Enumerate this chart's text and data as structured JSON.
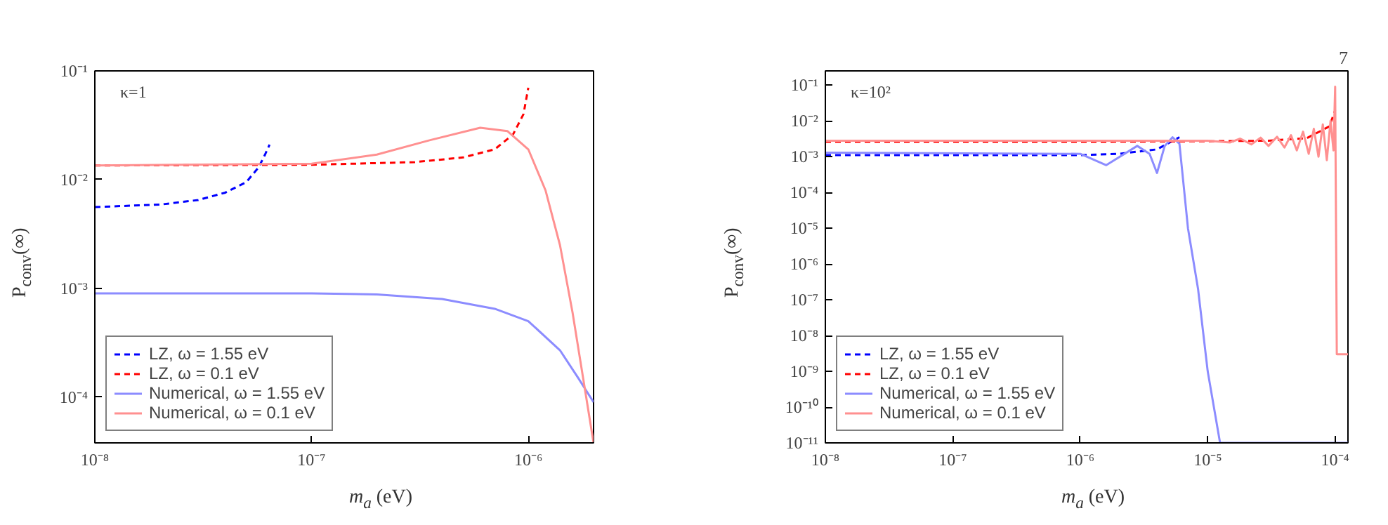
{
  "chart_data": [
    {
      "type": "line",
      "xlabel": "m$_{a}$ (eV)",
      "ylabel": "P$_{conv}$(∞)",
      "log": "xy",
      "grid": false,
      "legend": "bottom left",
      "annotations": [
        "κ=1"
      ],
      "xlim": [
        1e-08,
        2e-06
      ],
      "ylim": [
        3.8e-05,
        0.1
      ],
      "xticks": [
        {
          "value": 1e-08,
          "label": "10⁻⁸"
        },
        {
          "value": 1e-07,
          "label": "10⁻⁷"
        },
        {
          "value": 1e-06,
          "label": "10⁻⁶"
        }
      ],
      "yticks": [
        {
          "value": 0.0001,
          "label": "10⁻⁴"
        },
        {
          "value": 0.001,
          "label": "10⁻³"
        },
        {
          "value": 0.01,
          "label": "10⁻²"
        },
        {
          "value": 0.1,
          "label": "10⁻¹"
        }
      ],
      "series": [
        {
          "name": "LZ, ω = 1.55 eV",
          "color": "#0000ff",
          "line_style": "dashed",
          "x": [
            1e-08,
            2e-08,
            3e-08,
            4e-08,
            5e-08,
            5.7e-08,
            6.1e-08,
            6.4e-08
          ],
          "values": [
            0.0056,
            0.0059,
            0.0065,
            0.0076,
            0.0095,
            0.013,
            0.017,
            0.021
          ]
        },
        {
          "name": "LZ, ω = 0.1 eV",
          "color": "#ff0000",
          "line_style": "dashed",
          "x": [
            1e-08,
            1e-07,
            3e-07,
            5e-07,
            7e-07,
            8.5e-07,
            9.5e-07,
            1e-06
          ],
          "values": [
            0.0135,
            0.0137,
            0.0145,
            0.016,
            0.019,
            0.026,
            0.04,
            0.07
          ]
        },
        {
          "name": "Numerical, ω = 1.55 eV",
          "color": "#8c8cff",
          "line_style": "solid",
          "x": [
            1e-08,
            1e-07,
            2e-07,
            4e-07,
            7e-07,
            1e-06,
            1.4e-06,
            1.7e-06,
            2e-06
          ],
          "values": [
            0.0009,
            0.0009,
            0.00088,
            0.0008,
            0.00065,
            0.0005,
            0.00027,
            0.00015,
            9e-05
          ]
        },
        {
          "name": "Numerical, ω = 0.1 eV",
          "color": "#ff9090",
          "line_style": "solid",
          "x": [
            1e-08,
            1e-07,
            2e-07,
            3.5e-07,
            6e-07,
            8e-07,
            1e-06,
            1.2e-06,
            1.4e-06,
            1.6e-06,
            1.8e-06,
            2e-06
          ],
          "values": [
            0.0135,
            0.014,
            0.017,
            0.023,
            0.03,
            0.028,
            0.019,
            0.008,
            0.0025,
            0.0006,
            0.00014,
            3.8e-05
          ]
        }
      ]
    },
    {
      "type": "line",
      "xlabel": "m$_{a}$ (eV)",
      "ylabel": "P$_{conv}$(∞)",
      "log": "xy",
      "grid": false,
      "legend": "bottom left",
      "annotations": [
        "κ=10²",
        "7"
      ],
      "xlim": [
        1e-08,
        0.000126
      ],
      "ylim": [
        1e-11,
        0.25
      ],
      "xticks": [
        {
          "value": 1e-08,
          "label": "10⁻⁸"
        },
        {
          "value": 1e-07,
          "label": "10⁻⁷"
        },
        {
          "value": 1e-06,
          "label": "10⁻⁶"
        },
        {
          "value": 1e-05,
          "label": "10⁻⁵"
        },
        {
          "value": 0.0001,
          "label": "10⁻⁴"
        }
      ],
      "yticks": [
        {
          "value": 1e-11,
          "label": "10⁻¹¹"
        },
        {
          "value": 1e-10,
          "label": "10⁻¹⁰"
        },
        {
          "value": 1e-09,
          "label": "10⁻⁹"
        },
        {
          "value": 1e-08,
          "label": "10⁻⁸"
        },
        {
          "value": 1e-07,
          "label": "10⁻⁷"
        },
        {
          "value": 1e-06,
          "label": "10⁻⁶"
        },
        {
          "value": 1e-05,
          "label": "10⁻⁵"
        },
        {
          "value": 0.0001,
          "label": "10⁻⁴"
        },
        {
          "value": 0.001,
          "label": "10⁻³"
        },
        {
          "value": 0.01,
          "label": "10⁻²"
        },
        {
          "value": 0.1,
          "label": "10⁻¹"
        }
      ],
      "series": [
        {
          "name": "LZ, ω = 1.55 eV",
          "color": "#0000ff",
          "line_style": "dashed",
          "x": [
            1e-08,
            1e-06,
            2e-06,
            4e-06,
            6e-06
          ],
          "values": [
            0.0011,
            0.0011,
            0.0012,
            0.0016,
            0.0035
          ]
        },
        {
          "name": "LZ, ω = 0.1 eV",
          "color": "#ff0000",
          "line_style": "dashed",
          "x": [
            1e-08,
            1e-06,
            1e-05,
            3e-05,
            6e-05,
            9e-05,
            0.0001
          ],
          "values": [
            0.0026,
            0.0026,
            0.0027,
            0.0028,
            0.0033,
            0.007,
            0.02
          ]
        },
        {
          "name": "Numerical, ω = 1.55 eV",
          "color": "#8c8cff",
          "line_style": "solid",
          "x": [
            1e-08,
            1e-06,
            1.6e-06,
            2.8e-06,
            3.5e-06,
            4e-06,
            4.6e-06,
            5.3e-06,
            6e-06,
            7e-06,
            8.4e-06,
            1e-05,
            1.25e-05,
            0.000126
          ],
          "values": [
            0.0013,
            0.0012,
            0.00058,
            0.002,
            0.0012,
            0.00035,
            0.002,
            0.0035,
            0.0023,
            1e-05,
            2e-07,
            1e-09,
            1e-11,
            1e-11
          ]
        },
        {
          "name": "Numerical, ω = 0.1 eV",
          "color": "#ff9090",
          "line_style": "solid",
          "x": [
            1e-08,
            1e-06,
            1e-05,
            1.5e-05,
            1.8e-05,
            2.2e-05,
            2.6e-05,
            3e-05,
            3.5e-05,
            4e-05,
            4.5e-05,
            5e-05,
            5.6e-05,
            6.2e-05,
            6.8e-05,
            7.4e-05,
            8e-05,
            8.6e-05,
            9.2e-05,
            9.7e-05,
            0.0001,
            0.000103,
            0.000104,
            0.000126
          ],
          "values": [
            0.0028,
            0.0028,
            0.0028,
            0.0025,
            0.0032,
            0.0022,
            0.0034,
            0.002,
            0.0036,
            0.0018,
            0.004,
            0.0015,
            0.005,
            0.0012,
            0.006,
            0.001,
            0.008,
            0.0008,
            0.01,
            0.0015,
            0.09,
            3e-09,
            3e-09,
            3e-09
          ]
        }
      ]
    }
  ]
}
